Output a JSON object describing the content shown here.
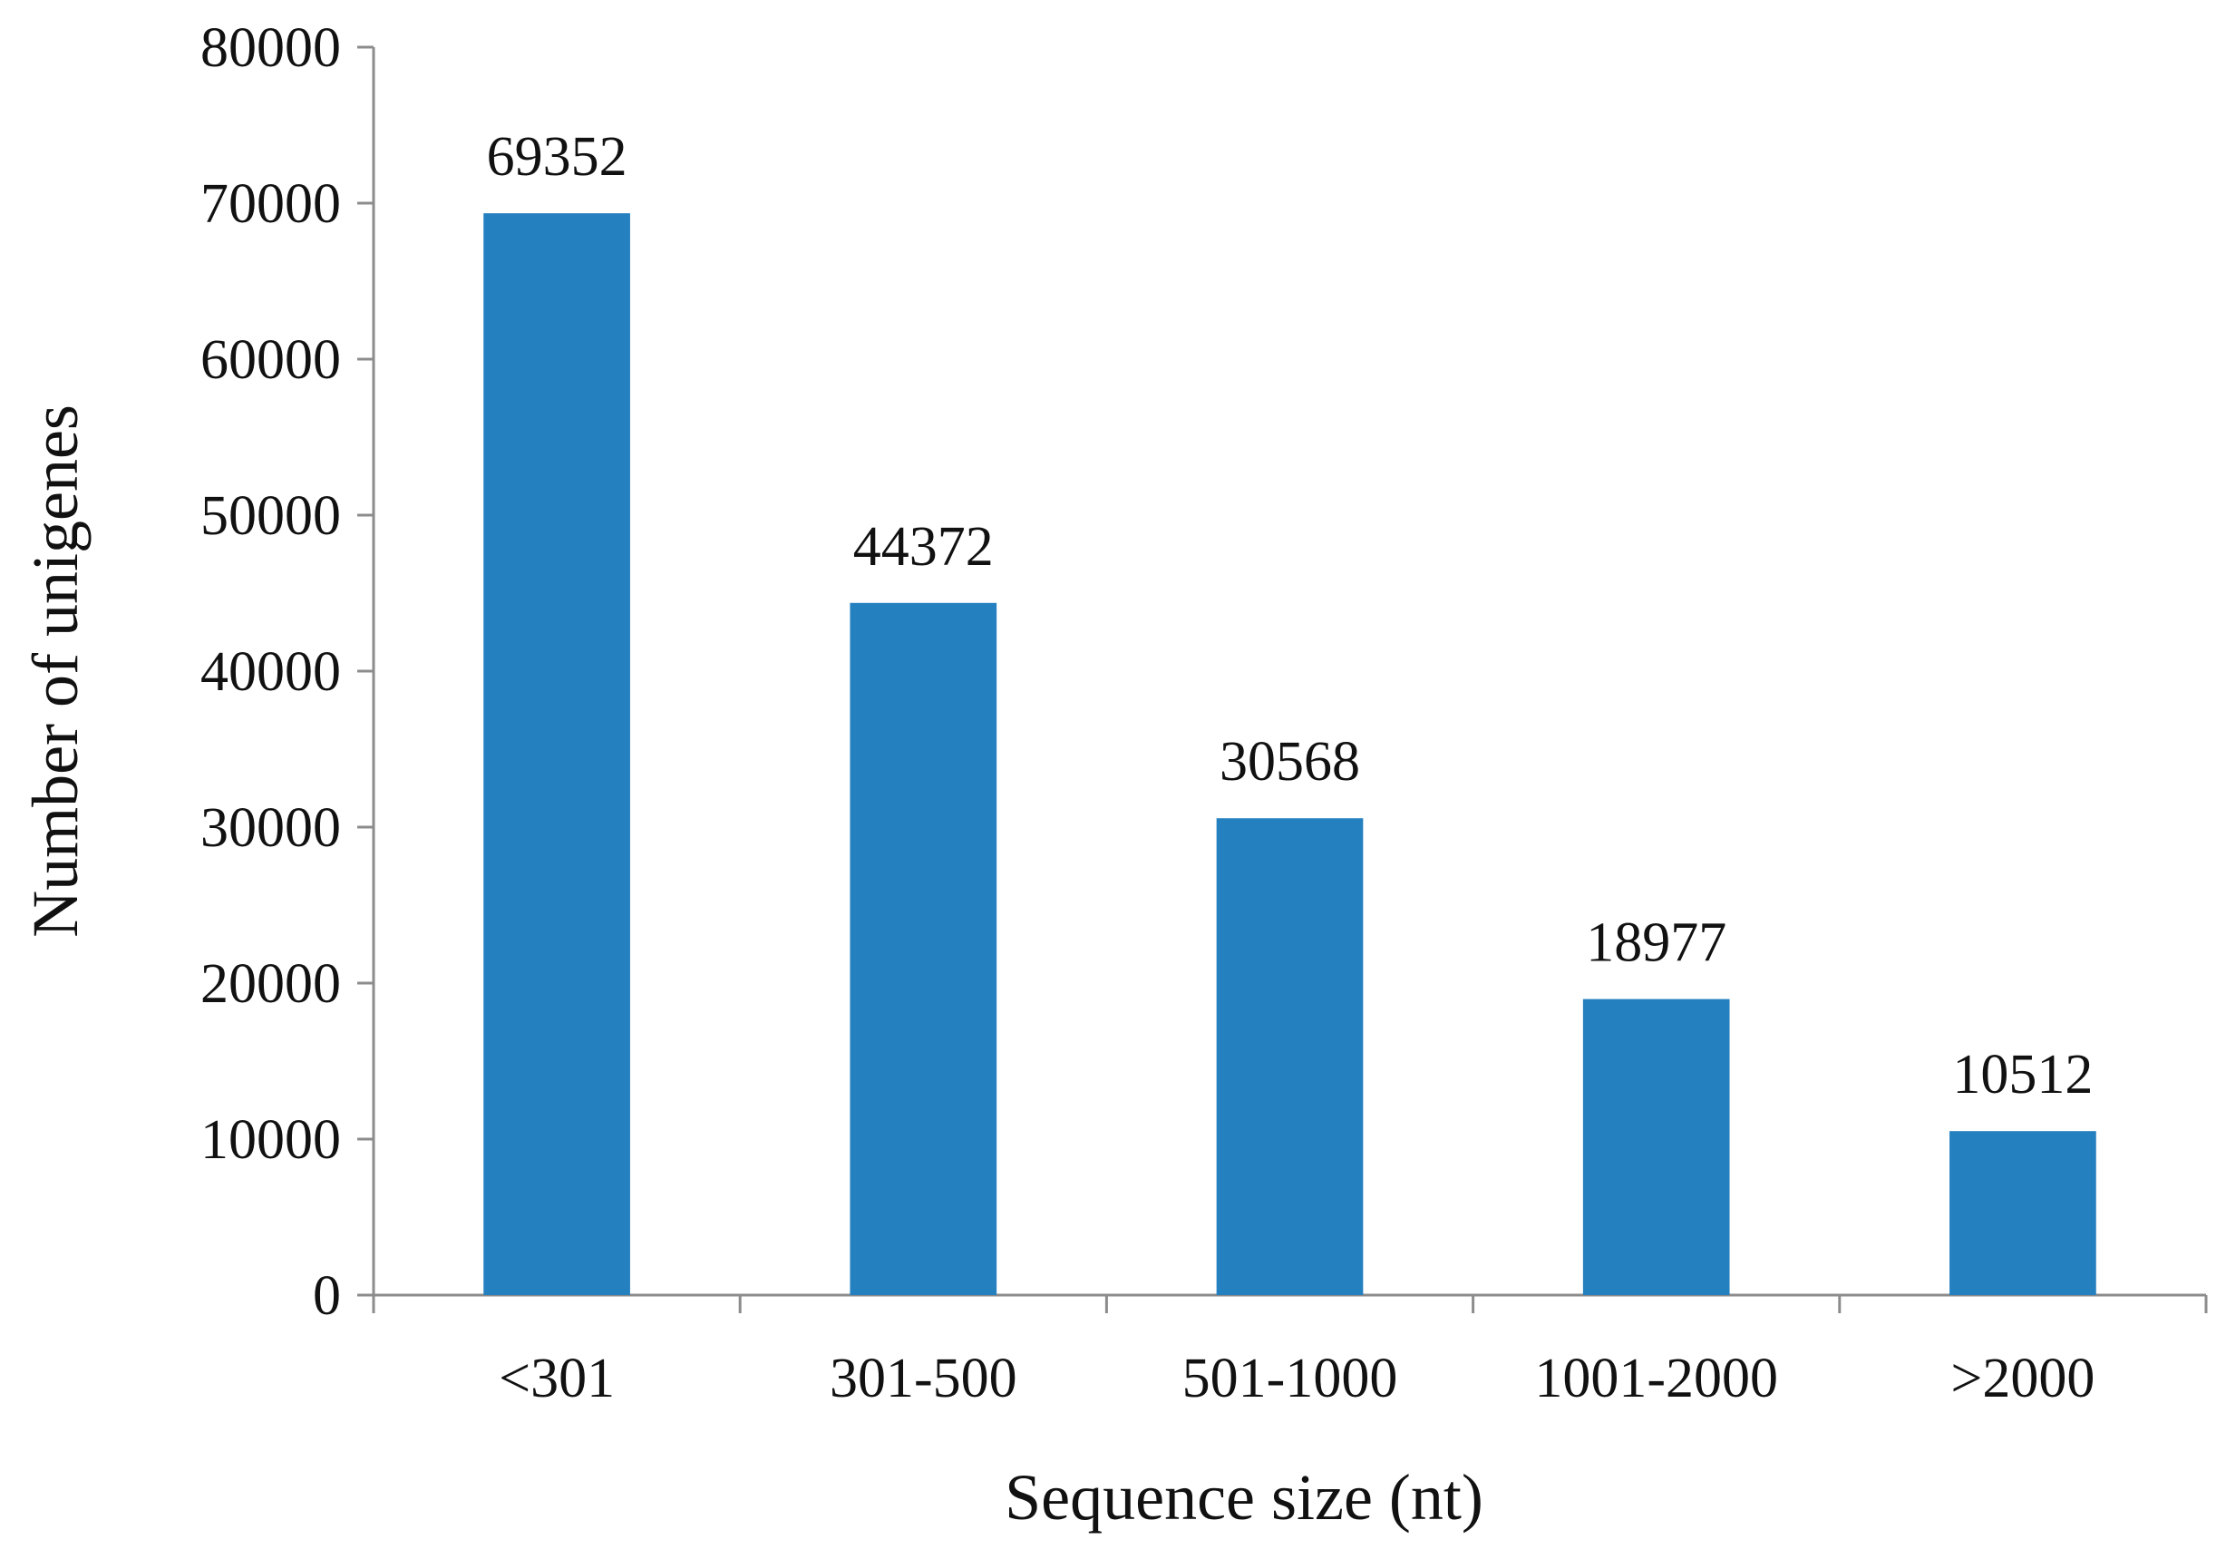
{
  "chart_data": {
    "type": "bar",
    "title": "",
    "xlabel": "Sequence size (nt)",
    "ylabel": "Number of unigenes",
    "categories": [
      "<301",
      "301-500",
      "501-1000",
      "1001-2000",
      ">2000"
    ],
    "values": [
      69352,
      44372,
      30568,
      18977,
      10512
    ],
    "data_labels": [
      "69352",
      "44372",
      "30568",
      "18977",
      "10512"
    ],
    "ylim": [
      0,
      80000
    ],
    "yticks": [
      0,
      10000,
      20000,
      30000,
      40000,
      50000,
      60000,
      70000,
      80000
    ],
    "ytick_labels": [
      "0",
      "10000",
      "20000",
      "30000",
      "40000",
      "50000",
      "60000",
      "70000",
      "80000"
    ],
    "grid": false,
    "legend": "none",
    "bar_color": "#2580c0"
  }
}
